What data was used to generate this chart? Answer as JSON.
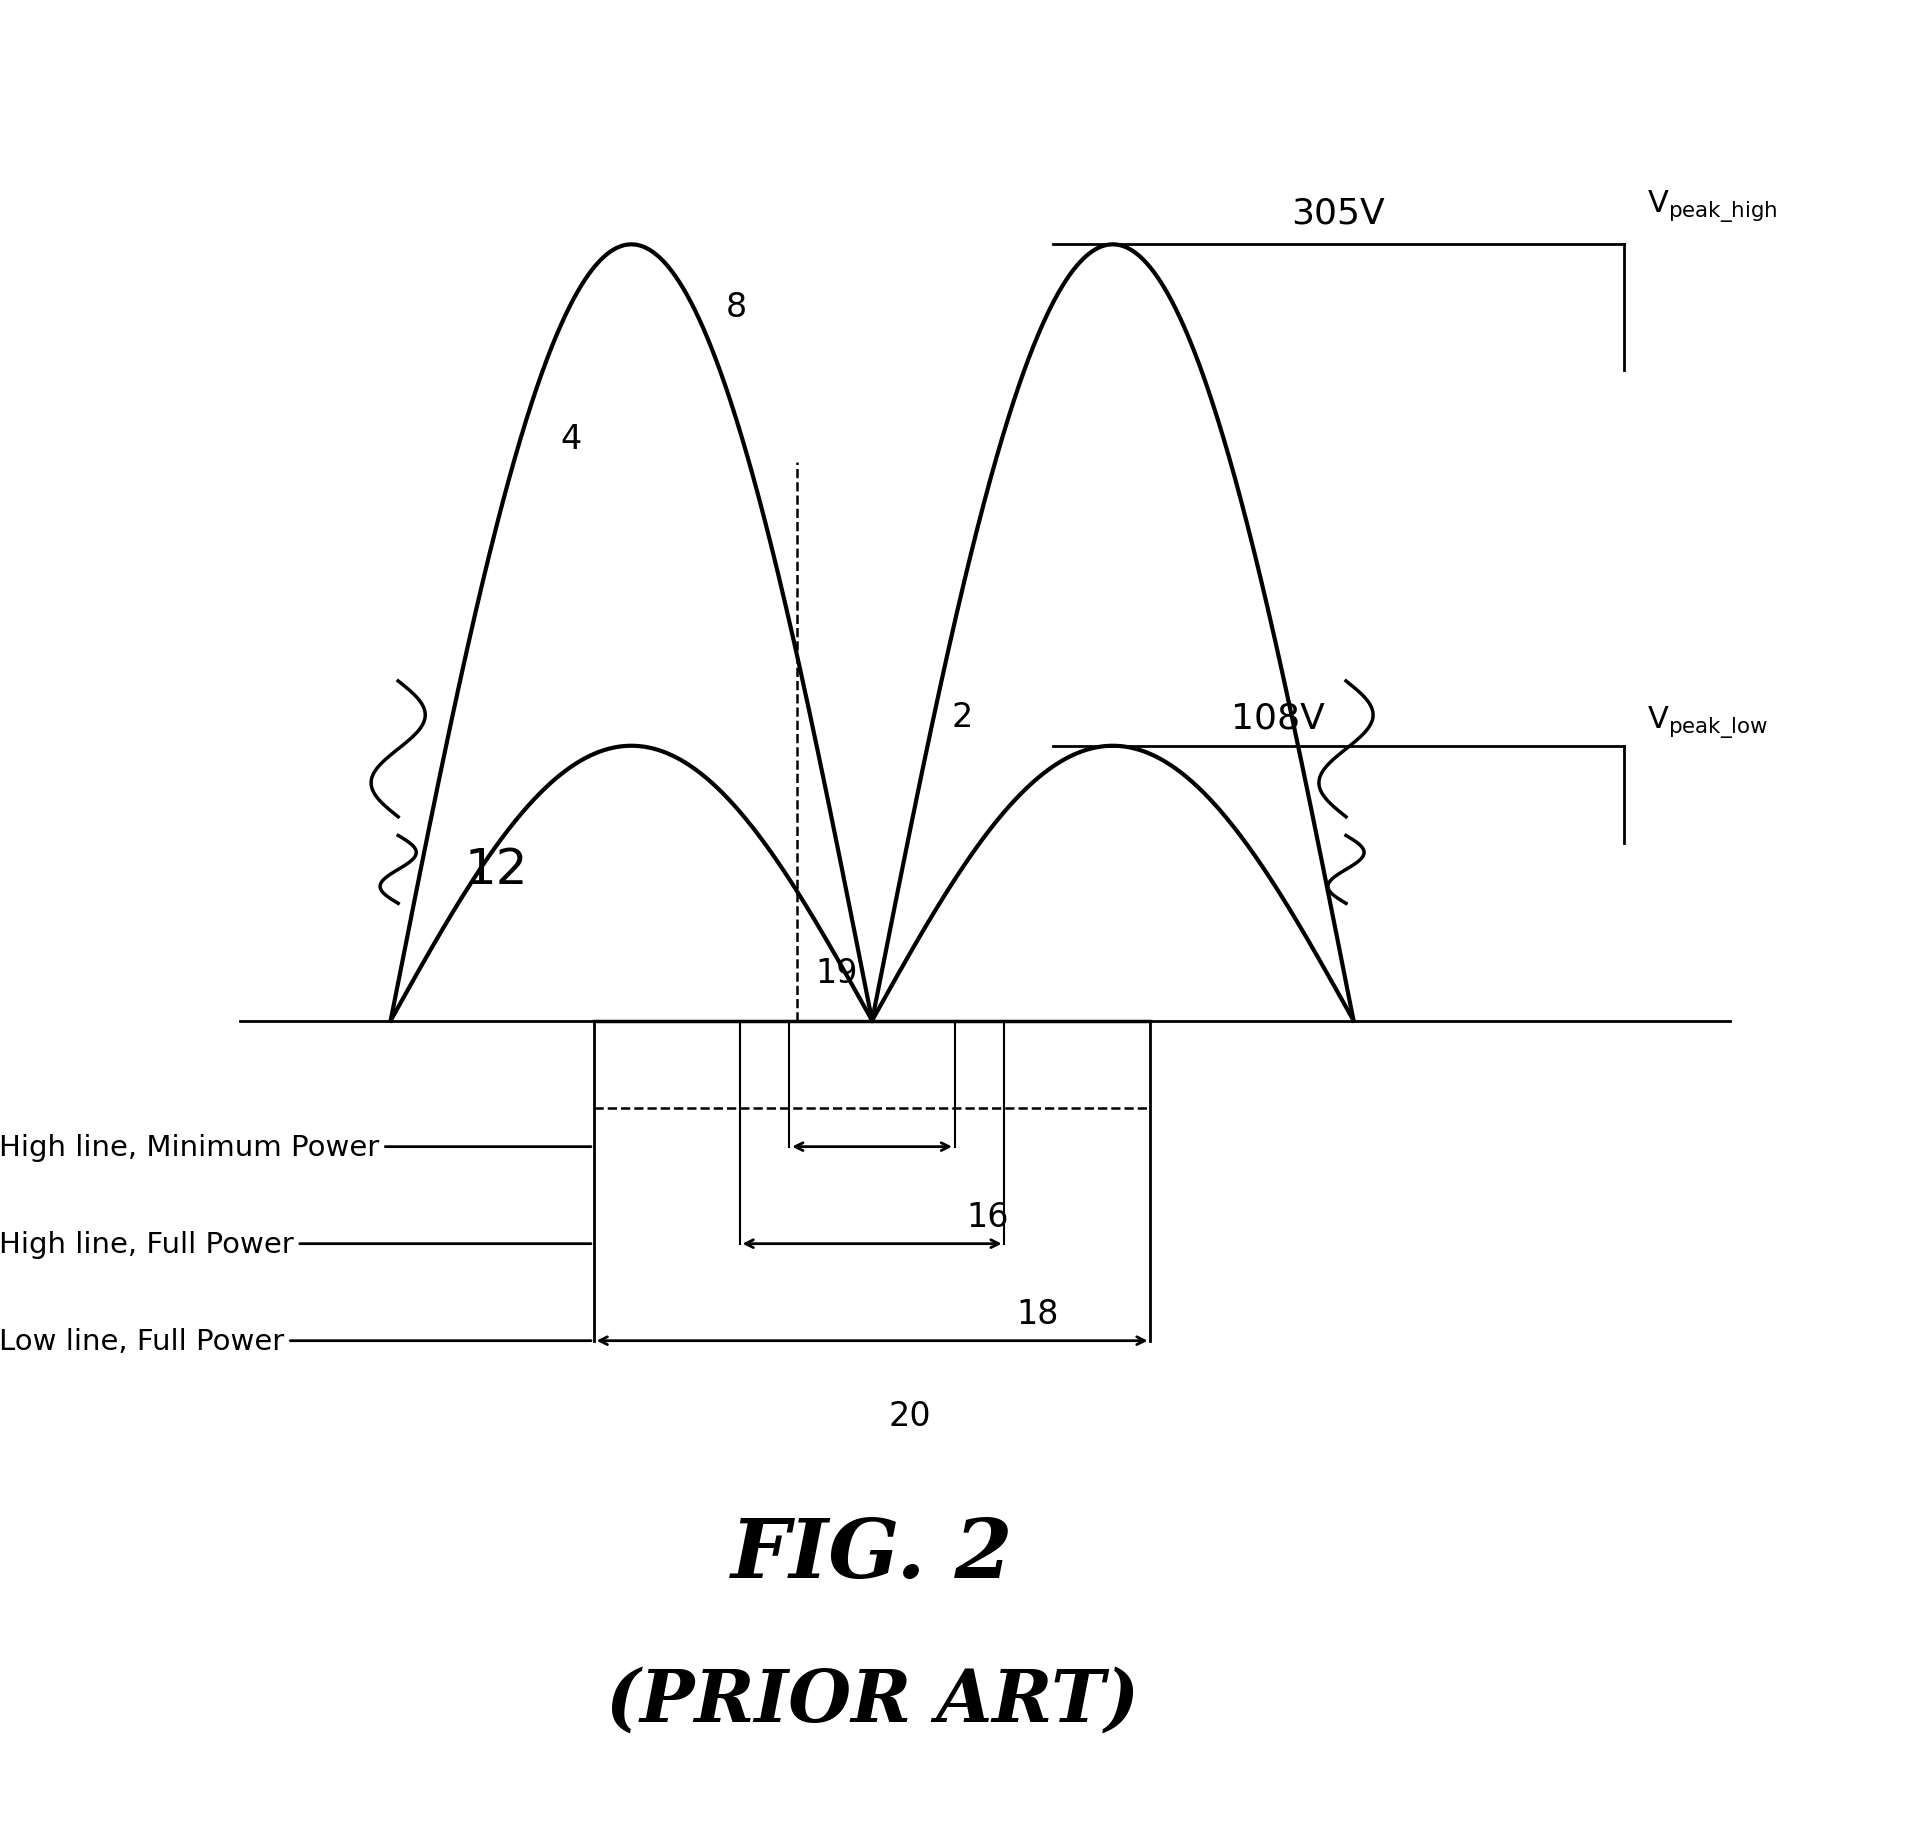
{
  "title_line1": "FIG. 2",
  "title_line2": "(PRIOR ART)",
  "bg_color": "#ffffff",
  "line_color": "#000000",
  "figsize": [
    19.28,
    18.49
  ],
  "dpi": 100,
  "high_amp": 1.0,
  "low_amp": 0.354,
  "label_high_min": "High line, Minimum Power",
  "label_high_full": "High line, Full Power",
  "label_low_full": "Low line, Full Power",
  "label_305V": "305V",
  "label_108V": "108V"
}
